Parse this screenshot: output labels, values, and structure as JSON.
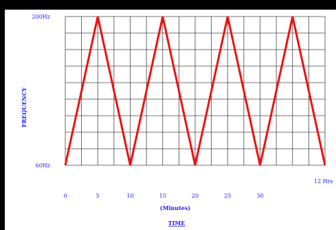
{
  "chart_data": {
    "type": "line",
    "title": "",
    "xlabel": "TIME",
    "xlabel_sub": "(Minutes)",
    "ylabel": "FREQUENCY",
    "x_ticks": [
      {
        "value": 0,
        "label": "0"
      },
      {
        "value": 5,
        "label": "5"
      },
      {
        "value": 10,
        "label": "10"
      },
      {
        "value": 15,
        "label": "15"
      },
      {
        "value": 20,
        "label": "20"
      },
      {
        "value": 25,
        "label": "25"
      },
      {
        "value": 30,
        "label": "30"
      },
      {
        "value": 40,
        "label": "12 Hrs"
      }
    ],
    "y_ticks": [
      {
        "value": 60,
        "label": "60Hz"
      },
      {
        "value": 200,
        "label": "200Hz"
      }
    ],
    "xlim": [
      0,
      40
    ],
    "ylim": [
      60,
      200
    ],
    "grid": true,
    "series": [
      {
        "x": [
          0,
          5,
          10,
          15,
          20,
          25,
          30,
          35,
          40
        ],
        "y": [
          60,
          200,
          60,
          200,
          60,
          200,
          60,
          200,
          60
        ]
      }
    ]
  },
  "colors": {
    "line": "#ee1111",
    "text": "#1a1aff",
    "grid": "#444444",
    "background": "#ffffff",
    "border": "#000000"
  }
}
